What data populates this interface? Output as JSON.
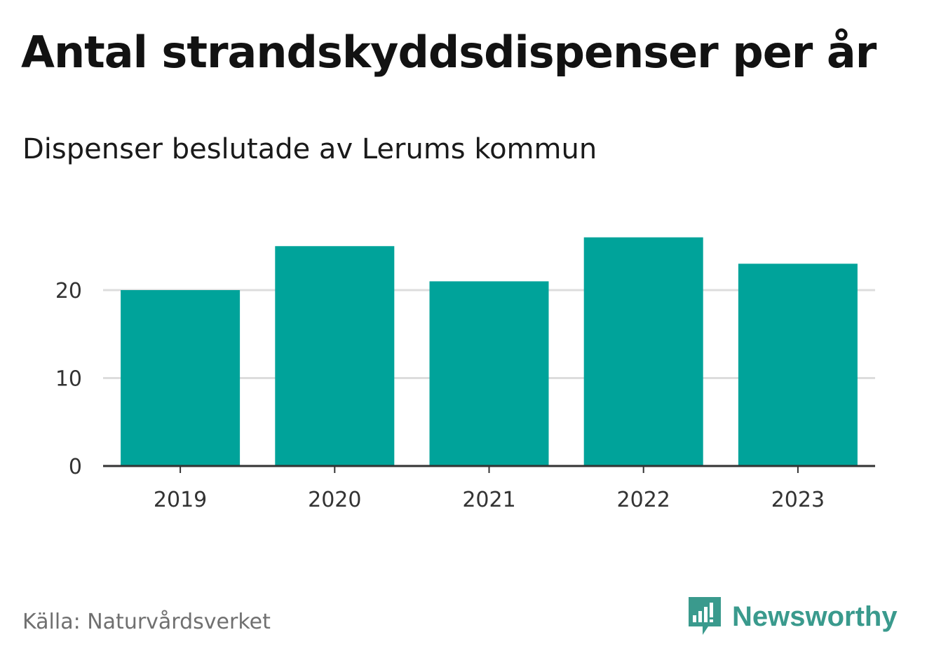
{
  "title": "Antal strandskyddsdispenser per år",
  "subtitle": "Dispenser beslutade av Lerums kommun",
  "source": "Källa: Naturvårdsverket",
  "brand": {
    "name": "Newsworthy",
    "logo_icon": "newsworthy-logo-icon",
    "color": "#3a9a8d"
  },
  "colors": {
    "bar": "#00a39a",
    "grid": "#dddddd",
    "axis": "#333333",
    "tick_text": "#333333"
  },
  "chart_data": {
    "type": "bar",
    "title": "Antal strandskyddsdispenser per år",
    "subtitle": "Dispenser beslutade av Lerums kommun",
    "xlabel": "",
    "ylabel": "",
    "categories": [
      "2019",
      "2020",
      "2021",
      "2022",
      "2023"
    ],
    "values": [
      20,
      25,
      21,
      26,
      23
    ],
    "ylim": [
      0,
      26
    ],
    "yticks": [
      0,
      10,
      20
    ],
    "grid": true,
    "legend": "none"
  }
}
